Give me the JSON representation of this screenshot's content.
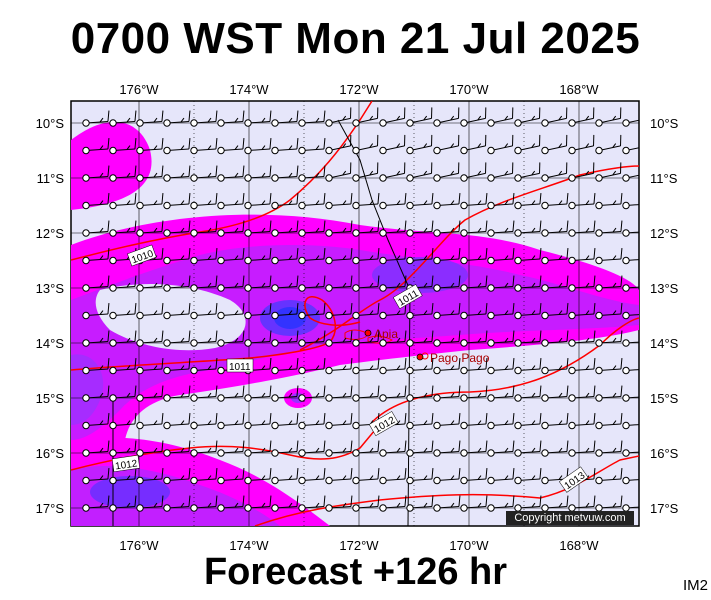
{
  "header": {
    "title": "0700 WST Mon 21 Jul 2025"
  },
  "footer": {
    "forecast": "Forecast +126 hr",
    "code": "IM2"
  },
  "copyright": "Copyright metvuw.com",
  "axes": {
    "lon_labels": [
      "176°W",
      "174°W",
      "172°W",
      "170°W",
      "168°W"
    ],
    "lat_labels": [
      "10°S",
      "11°S",
      "12°S",
      "13°S",
      "14°S",
      "15°S",
      "16°S",
      "17°S"
    ]
  },
  "places": [
    {
      "name": "Apia"
    },
    {
      "name": "Pago Pago"
    }
  ],
  "isobar_labels": [
    "1010",
    "1011",
    "1011",
    "1012",
    "1012",
    "1013"
  ],
  "colors": {
    "background": "#e6e6fa",
    "magenta": "#ff00ff",
    "purple": "#9933ff",
    "blue": "#3333ff",
    "isobar": "#ff0000"
  }
}
